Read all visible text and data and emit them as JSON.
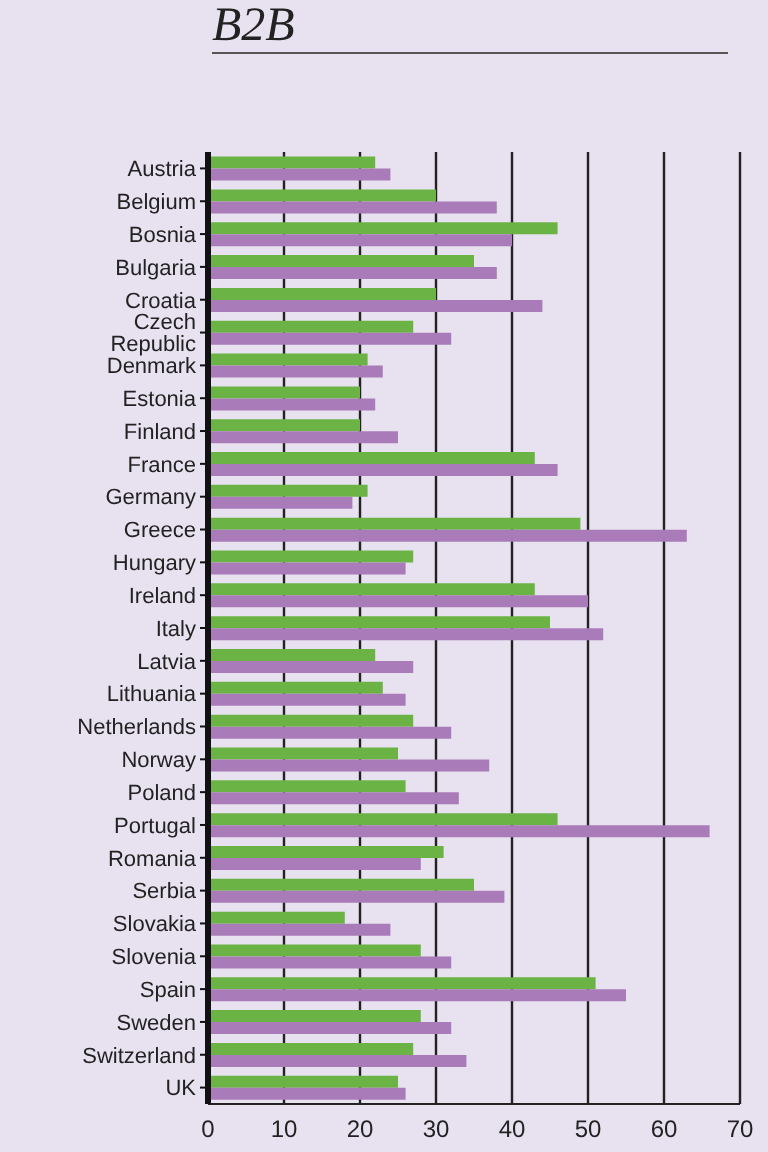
{
  "chart_data": {
    "type": "bar",
    "orientation": "horizontal",
    "title": "B2B",
    "categories": [
      "Austria",
      "Belgium",
      "Bosnia",
      "Bulgaria",
      "Croatia",
      "Czech Republic",
      "Denmark",
      "Estonia",
      "Finland",
      "France",
      "Germany",
      "Greece",
      "Hungary",
      "Ireland",
      "Italy",
      "Latvia",
      "Lithuania",
      "Netherlands",
      "Norway",
      "Poland",
      "Portugal",
      "Romania",
      "Serbia",
      "Slovakia",
      "Slovenia",
      "Spain",
      "Sweden",
      "Switzerland",
      "UK"
    ],
    "series": [
      {
        "color": "#6ab344",
        "values": [
          22,
          30,
          46,
          35,
          30,
          27,
          21,
          20,
          20,
          43,
          21,
          49,
          27,
          43,
          45,
          22,
          23,
          27,
          25,
          26,
          46,
          31,
          35,
          18,
          28,
          51,
          28,
          27,
          25
        ]
      },
      {
        "color": "#a97bb8",
        "values": [
          24,
          38,
          40,
          38,
          44,
          32,
          23,
          22,
          25,
          46,
          19,
          63,
          26,
          50,
          52,
          27,
          26,
          32,
          37,
          33,
          66,
          28,
          39,
          24,
          32,
          55,
          32,
          34,
          26
        ]
      }
    ],
    "xlim": [
      0,
      70
    ],
    "xticks": [
      0,
      10,
      20,
      30,
      40,
      50,
      60,
      70
    ],
    "grid": "x"
  }
}
